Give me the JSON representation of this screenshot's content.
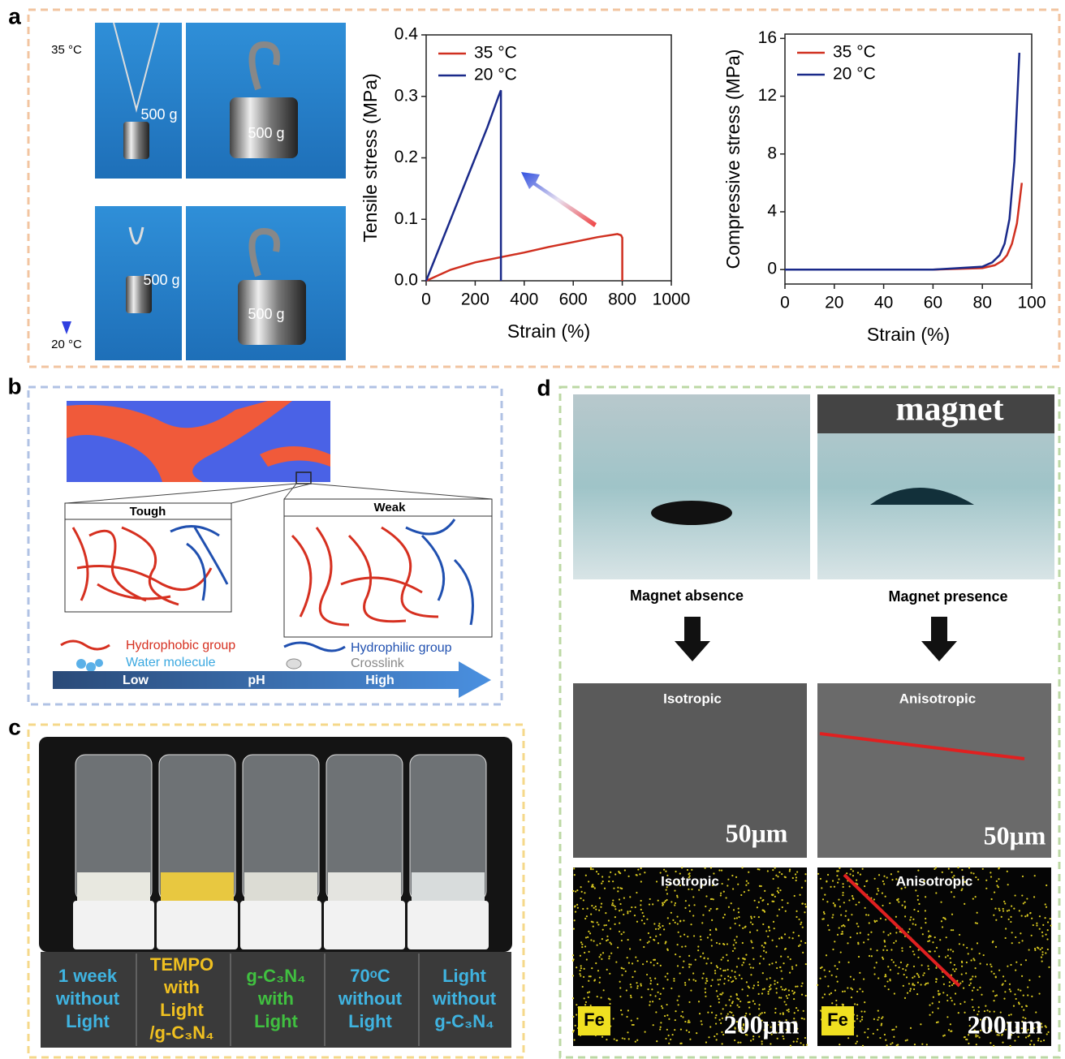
{
  "chart_data": [
    {
      "type": "line",
      "y_label": "Tensile stress (MPa)",
      "x_label": "Strain (%)",
      "xlim": [
        0,
        1000
      ],
      "ylim": [
        0,
        0.4
      ],
      "xticks": [
        0,
        200,
        400,
        600,
        800,
        1000
      ],
      "yticks": [
        {
          "value": 0,
          "label": "0.0"
        },
        0.1,
        0.2,
        0.3,
        0.4
      ],
      "series": [
        {
          "name": "35 °C",
          "color": "#d03020",
          "x": [
            0,
            100,
            200,
            300,
            400,
            500,
            600,
            700,
            780,
            795,
            800,
            800
          ],
          "values": [
            0,
            0.018,
            0.03,
            0.038,
            0.046,
            0.055,
            0.063,
            0.071,
            0.076,
            0.074,
            0.07,
            0
          ]
        },
        {
          "name": "20 °C",
          "color": "#1a2a8a",
          "x": [
            0,
            50,
            100,
            150,
            200,
            250,
            295,
            305,
            305
          ],
          "values": [
            0,
            0.05,
            0.1,
            0.15,
            0.2,
            0.25,
            0.3,
            0.31,
            0
          ]
        }
      ]
    },
    {
      "type": "line",
      "y_label": "Compressive stress (MPa)",
      "x_label": "Strain (%)",
      "xlim": [
        0,
        100
      ],
      "ylim": [
        -1,
        16.3
      ],
      "xticks": [
        0,
        20,
        40,
        60,
        80,
        100
      ],
      "yticks": [
        0,
        4,
        8,
        12,
        16
      ],
      "series": [
        {
          "name": "35 °C",
          "color": "#d03020",
          "x": [
            0,
            60,
            80,
            85,
            88,
            90,
            92,
            94,
            96
          ],
          "values": [
            0,
            0,
            0.1,
            0.3,
            0.6,
            1.0,
            1.8,
            3.2,
            6.0
          ]
        },
        {
          "name": "20 °C",
          "color": "#1a2a8a",
          "x": [
            0,
            60,
            80,
            84,
            87,
            89,
            91,
            93,
            95
          ],
          "values": [
            0,
            0,
            0.2,
            0.5,
            1.0,
            1.8,
            3.5,
            7.5,
            15.0
          ]
        }
      ]
    }
  ],
  "panel_labels": [
    "a",
    "b",
    "c",
    "d"
  ],
  "panel_a": {
    "temperatures": [
      "35 °C",
      "20 °C"
    ],
    "weight_labels": [
      "500 g",
      "500 g",
      "500 g",
      "500 g"
    ]
  },
  "panel_b": {
    "states": [
      "Tough",
      "Weak"
    ],
    "legend": [
      "Hydrophobic group",
      "Hydrophilic group",
      "Water molecule",
      "Crosslink"
    ],
    "ph_scale": [
      "Low",
      "pH",
      "High"
    ]
  },
  "panel_c": {
    "conditions": [
      [
        "1 week",
        "without",
        "Light"
      ],
      [
        "TEMPO",
        "with",
        "Light",
        "/g-C₃N₄"
      ],
      [
        "g-C₃N₄",
        "with",
        "Light"
      ],
      [
        "70ᵒC",
        "without",
        "Light"
      ],
      [
        "Light",
        "without",
        "g-C₃N₄"
      ]
    ]
  },
  "panel_d": {
    "magnet_label": "magnet",
    "conditions": [
      "Magnet absence",
      "Magnet presence"
    ],
    "structures": [
      "Isotropic",
      "Anisotropic",
      "Isotropic",
      "Anisotropic"
    ],
    "scale_bars": [
      "50μm",
      "50μm",
      "200μm",
      "200μm"
    ],
    "element": [
      "Fe",
      "Fe"
    ]
  }
}
